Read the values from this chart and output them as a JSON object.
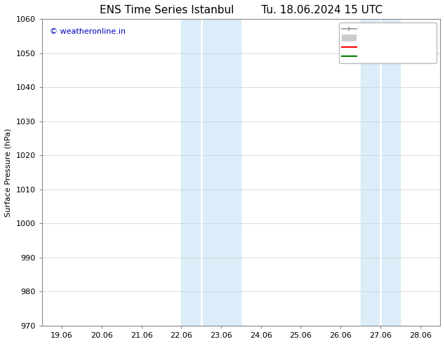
{
  "title_left": "ENS Time Series Istanbul",
  "title_right": "Tu. 18.06.2024 15 UTC",
  "ylabel": "Surface Pressure (hPa)",
  "ylim": [
    970,
    1060
  ],
  "yticks": [
    970,
    980,
    990,
    1000,
    1010,
    1020,
    1030,
    1040,
    1050,
    1060
  ],
  "xtick_labels": [
    "19.06",
    "20.06",
    "21.06",
    "22.06",
    "23.06",
    "24.06",
    "25.06",
    "26.06",
    "27.06",
    "28.06"
  ],
  "xtick_positions": [
    0,
    1,
    2,
    3,
    4,
    5,
    6,
    7,
    8,
    9
  ],
  "x_min": -0.5,
  "x_max": 9.5,
  "band1_start": 3.0,
  "band1_mid": 3.5,
  "band1_end": 4.5,
  "band2_start": 7.5,
  "band2_mid": 8.0,
  "band2_end": 8.5,
  "band_color_dark": "#c5dff0",
  "band_color_light": "#daedf8",
  "watermark_text": "© weatheronline.in",
  "watermark_color": "#0000bb",
  "background_color": "#ffffff",
  "plot_bg_color": "#ffffff",
  "grid_color": "#cccccc",
  "title_fontsize": 11,
  "axis_fontsize": 8,
  "tick_fontsize": 8,
  "legend_fontsize": 7.5
}
